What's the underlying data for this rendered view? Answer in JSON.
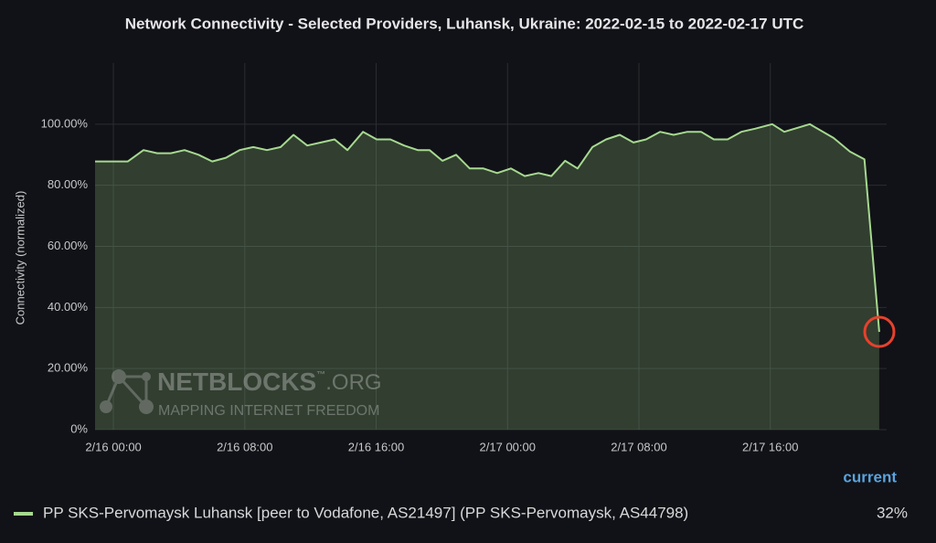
{
  "chart_data": {
    "type": "area",
    "title": "Network Connectivity - Selected Providers, Luhansk, Ukraine: 2022-02-15 to 2022-02-17 UTC",
    "ylabel": "Connectivity (normalized)",
    "x": [
      "2/15 22:53",
      "2/16 00:53",
      "2/16 01:50",
      "2/16 02:40",
      "2/16 03:30",
      "2/16 04:20",
      "2/16 05:11",
      "2/16 06:01",
      "2/16 06:51",
      "2/16 07:41",
      "2/16 08:31",
      "2/16 09:21",
      "2/16 10:11",
      "2/16 10:58",
      "2/16 11:48",
      "2/16 12:38",
      "2/16 13:28",
      "2/16 14:15",
      "2/16 15:12",
      "2/16 16:02",
      "2/16 16:52",
      "2/16 17:42",
      "2/16 18:32",
      "2/16 19:15",
      "2/16 20:02",
      "2/16 20:52",
      "2/16 21:42",
      "2/16 22:32",
      "2/16 23:22",
      "2/17 00:12",
      "2/17 01:03",
      "2/17 01:53",
      "2/17 02:40",
      "2/17 03:30",
      "2/17 04:16",
      "2/17 05:10",
      "2/17 06:00",
      "2/17 06:50",
      "2/17 07:40",
      "2/17 08:26",
      "2/17 09:17",
      "2/17 10:07",
      "2/17 10:57",
      "2/17 11:47",
      "2/17 12:34",
      "2/17 13:24",
      "2/17 14:14",
      "2/17 15:04",
      "2/17 16:07",
      "2/17 16:51",
      "2/17 18:24",
      "2/17 19:51",
      "2/17 20:51",
      "2/17 21:44",
      "2/17 22:38"
    ],
    "series": [
      {
        "name": "PP SKS-Pervomaysk Luhansk [peer to Vodafone, AS21497] (PP SKS-Pervomaysk, AS44798)",
        "color": "#a6d98f",
        "values": [
          87.8,
          87.8,
          91.5,
          90.5,
          90.5,
          91.5,
          90,
          87.8,
          89,
          91.5,
          92.5,
          91.5,
          92.5,
          96.5,
          93,
          94,
          95,
          91.5,
          97.5,
          95,
          95,
          93,
          91.5,
          91.5,
          88,
          90,
          85.5,
          85.5,
          84,
          85.5,
          83,
          84,
          83,
          88,
          85.5,
          92.5,
          95,
          96.5,
          94,
          95,
          97.5,
          96.5,
          97.5,
          97.5,
          95,
          95,
          97.5,
          98.5,
          100,
          97.5,
          100,
          95.5,
          91,
          88.5,
          32
        ],
        "current": "32%"
      }
    ],
    "legend_header": "current",
    "xlim": [
      "2/15 22:53",
      "2/17 23:05"
    ],
    "xticks": [
      "2/16 00:00",
      "2/16 08:00",
      "2/16 16:00",
      "2/17 00:00",
      "2/17 08:00",
      "2/17 16:00"
    ],
    "ylim": [
      0,
      120
    ],
    "yticks": [
      {
        "value": 0,
        "label": "0%"
      },
      {
        "value": 20,
        "label": "20.00%"
      },
      {
        "value": 40,
        "label": "40.00%"
      },
      {
        "value": 60,
        "label": "60.00%"
      },
      {
        "value": 80,
        "label": "80.00%"
      },
      {
        "value": 100,
        "label": "100.00%"
      }
    ],
    "grid": true
  },
  "watermark": {
    "brand": "NETBLOCKS",
    "tm": "™",
    "domain": ".ORG",
    "tagline": "MAPPING INTERNET FREEDOM"
  }
}
